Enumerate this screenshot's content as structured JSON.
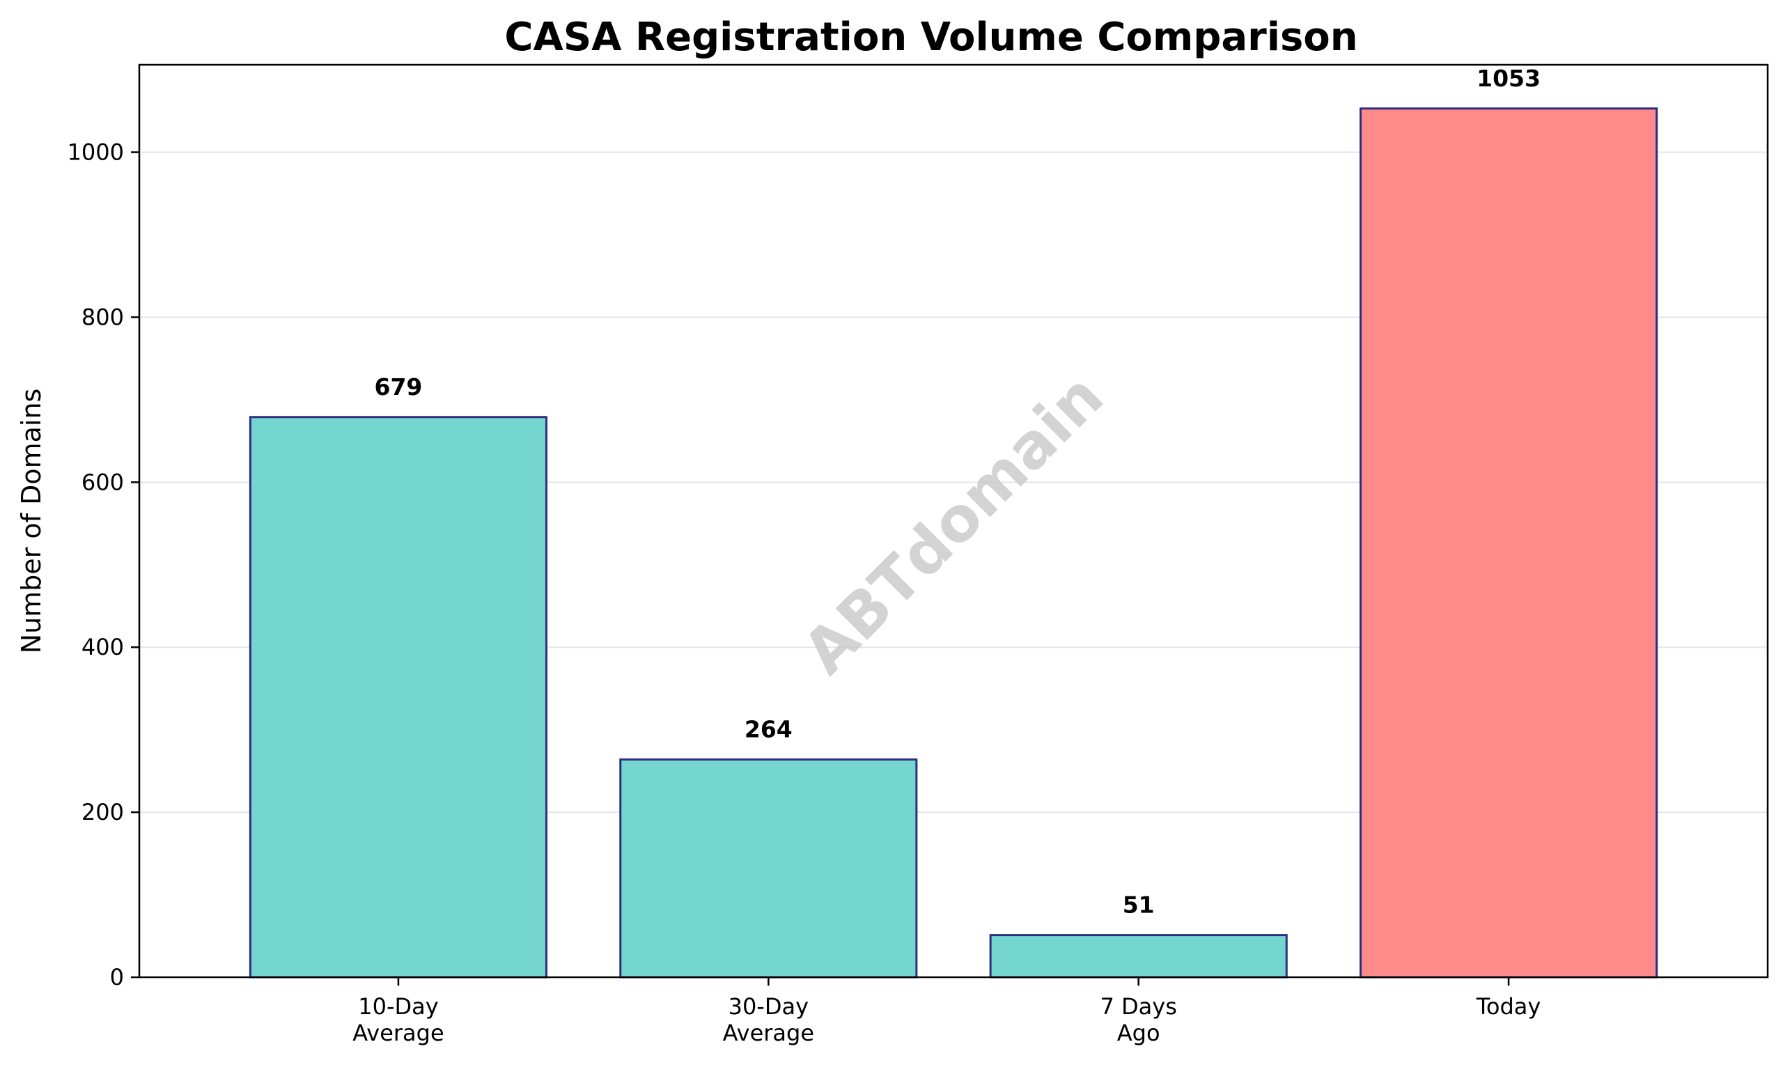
{
  "chart_data": {
    "type": "bar",
    "title": "CASA Registration Volume Comparison",
    "xlabel": "",
    "ylabel": "Number of Domains",
    "categories": [
      [
        "10-Day",
        "Average"
      ],
      [
        "30-Day",
        "Average"
      ],
      [
        "7 Days",
        "Ago"
      ],
      [
        "Today"
      ]
    ],
    "values": [
      679,
      264,
      51,
      1053
    ],
    "data_labels": [
      "679",
      "264",
      "51",
      "1053"
    ],
    "bar_colors": [
      "#74d6cf",
      "#74d6cf",
      "#74d6cf",
      "#ff8a8a"
    ],
    "bar_edge_color": "#2b2f80",
    "ylim": [
      0,
      1106
    ],
    "yticks": [
      0,
      200,
      400,
      600,
      800,
      1000
    ],
    "grid": "y",
    "legend": "none",
    "watermark": "ABTdomain"
  }
}
